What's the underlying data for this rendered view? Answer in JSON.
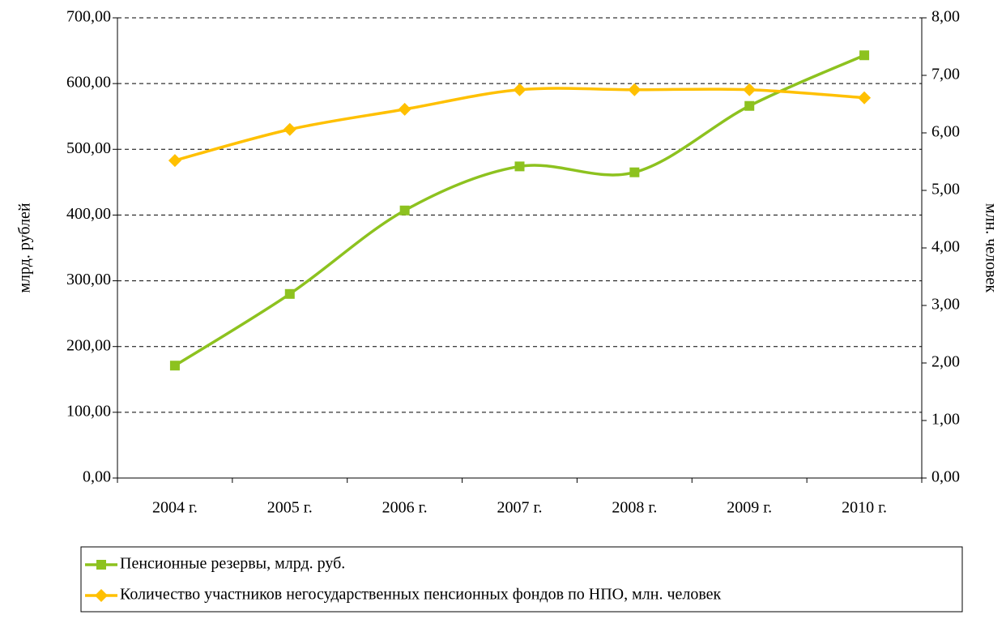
{
  "chart_data": {
    "type": "line",
    "categories": [
      "2004 г.",
      "2005 г.",
      "2006 г.",
      "2007 г.",
      "2008 г.",
      "2009 г.",
      "2010 г."
    ],
    "series": [
      {
        "name": "Пенсионные резервы, млрд. руб.",
        "color": "#8dc21f",
        "marker": "square",
        "values": [
          171,
          280,
          407,
          474,
          465,
          566,
          643
        ]
      },
      {
        "name": "Количество участников  негосударственных пенсионных фондов по НПО, млн. человек",
        "color": "#ffc000",
        "marker": "diamond",
        "axis": "y2",
        "values": [
          5.52,
          6.06,
          6.41,
          6.75,
          6.75,
          6.75,
          6.61
        ]
      }
    ],
    "ylabel": "млрд. рублей",
    "y2label": "млн. человек",
    "ylim": [
      0,
      700
    ],
    "yticks": [
      {
        "value": 0,
        "label": "0,00"
      },
      {
        "value": 100,
        "label": "100,00"
      },
      {
        "value": 200,
        "label": "200,00"
      },
      {
        "value": 300,
        "label": "300,00"
      },
      {
        "value": 400,
        "label": "400,00"
      },
      {
        "value": 500,
        "label": "500,00"
      },
      {
        "value": 600,
        "label": "600,00"
      },
      {
        "value": 700,
        "label": "700,00"
      }
    ],
    "y2lim": [
      0,
      8
    ],
    "y2ticks": [
      {
        "value": 0,
        "label": "0,00"
      },
      {
        "value": 1,
        "label": "1,00"
      },
      {
        "value": 2,
        "label": "2,00"
      },
      {
        "value": 3,
        "label": "3,00"
      },
      {
        "value": 4,
        "label": "4,00"
      },
      {
        "value": 5,
        "label": "5,00"
      },
      {
        "value": 6,
        "label": "6,00"
      },
      {
        "value": 7,
        "label": "7,00"
      },
      {
        "value": 8,
        "label": "8,00"
      }
    ],
    "grid": true,
    "smooth": true,
    "legend": "bottom"
  }
}
